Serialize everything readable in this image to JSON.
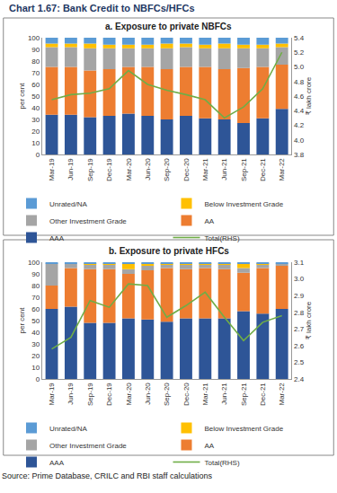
{
  "title": "Chart 1.67: Bank Credit to NBFCs/HFCs",
  "source": "Source: Prime Database, CRILC and RBI staff calculations",
  "chart_data": [
    {
      "type": "bar",
      "title": "a. Exposure to private NBFCs",
      "stacked": true,
      "grid": false,
      "legend": "bottom",
      "ylabel": "per cent",
      "y2label": "₹ lakh crore",
      "categories": [
        "Mar-19",
        "Jun-19",
        "Sep-19",
        "Dec-19",
        "Mar-20",
        "Jun-20",
        "Sep-20",
        "Dec-20",
        "Mar-21",
        "Jun-21",
        "Sep-21",
        "Dec-21",
        "Mar-22"
      ],
      "ylim": [
        0,
        100
      ],
      "yticks": [
        0,
        10,
        20,
        30,
        40,
        50,
        60,
        70,
        80,
        90,
        100
      ],
      "y2lim": [
        3.8,
        5.4
      ],
      "y2ticks": [
        3.8,
        {
          "value": 4.0,
          "label": "4.0"
        },
        4.2,
        4.4,
        4.6,
        4.8,
        {
          "value": 5.0,
          "label": "5.0"
        },
        5.2,
        5.4
      ],
      "series": [
        {
          "name": "AAA",
          "color": "#2e5597",
          "values": [
            34,
            34,
            32,
            33,
            35,
            33,
            30,
            33,
            31,
            30,
            27,
            31,
            39
          ]
        },
        {
          "name": "AA",
          "color": "#ed7d31",
          "values": [
            41,
            41,
            40,
            40,
            40,
            42,
            43,
            42,
            44,
            43,
            47,
            44,
            38
          ]
        },
        {
          "name": "Other Investment Grade",
          "color": "#a5a5a5",
          "values": [
            17,
            17,
            19,
            18,
            16,
            16,
            18,
            17,
            16,
            18,
            17,
            16,
            15
          ]
        },
        {
          "name": "Below Investment Grade",
          "color": "#ffc000",
          "values": [
            3,
            3,
            4,
            3,
            3,
            3,
            4,
            3,
            3,
            4,
            3,
            3,
            3
          ]
        },
        {
          "name": "Unrated/NA",
          "color": "#5b9bd5",
          "values": [
            5,
            5,
            5,
            6,
            6,
            6,
            5,
            5,
            6,
            5,
            6,
            6,
            5
          ]
        },
        {
          "name": "Total(RHS)",
          "type": "line",
          "axis": "y2",
          "color": "#70ad47",
          "values": [
            4.55,
            4.62,
            4.64,
            4.7,
            4.95,
            4.76,
            4.68,
            4.62,
            4.55,
            4.3,
            4.45,
            4.7,
            5.2
          ]
        }
      ]
    },
    {
      "type": "bar",
      "title": "b. Exposure to private HFCs",
      "stacked": true,
      "grid": false,
      "legend": "bottom",
      "ylabel": "per cent",
      "y2label": "₹ lakh crore",
      "categories": [
        "Mar-19",
        "Jun-19",
        "Sep-19",
        "Dec-19",
        "Mar-20",
        "Jun-20",
        "Sep-20",
        "Dec-20",
        "Mar-21",
        "Jun-21",
        "Sep-21",
        "Dec-21",
        "Mar-22"
      ],
      "ylim": [
        0,
        100
      ],
      "yticks": [
        0,
        10,
        20,
        30,
        40,
        50,
        60,
        70,
        80,
        90,
        100
      ],
      "y2lim": [
        2.4,
        3.1
      ],
      "y2ticks": [
        2.4,
        2.5,
        2.6,
        2.7,
        2.8,
        2.9,
        {
          "value": 3.0,
          "label": "3.0"
        },
        3.1
      ],
      "series": [
        {
          "name": "AAA",
          "color": "#2e5597",
          "values": [
            60,
            62,
            48,
            48,
            52,
            51,
            49,
            52,
            52,
            52,
            58,
            56,
            60
          ]
        },
        {
          "name": "AA",
          "color": "#ed7d31",
          "values": [
            20,
            33,
            46,
            46,
            38,
            42,
            46,
            42,
            43,
            42,
            33,
            39,
            37
          ]
        },
        {
          "name": "Other Investment Grade",
          "color": "#a5a5a5",
          "values": [
            19,
            4,
            4,
            4,
            4,
            4,
            3,
            4,
            3,
            4,
            4,
            3,
            2
          ]
        },
        {
          "name": "Below Investment Grade",
          "color": "#ffc000",
          "values": [
            0,
            0,
            1,
            1,
            5,
            2,
            1,
            1,
            1,
            1,
            4,
            1,
            0
          ]
        },
        {
          "name": "Unrated/NA",
          "color": "#5b9bd5",
          "values": [
            1,
            1,
            1,
            1,
            1,
            1,
            1,
            1,
            1,
            1,
            1,
            1,
            1
          ]
        },
        {
          "name": "Total(RHS)",
          "type": "line",
          "axis": "y2",
          "color": "#70ad47",
          "values": [
            2.58,
            2.65,
            2.87,
            2.83,
            2.97,
            2.96,
            2.77,
            2.84,
            2.92,
            2.77,
            2.63,
            2.74,
            2.78
          ]
        }
      ]
    }
  ]
}
